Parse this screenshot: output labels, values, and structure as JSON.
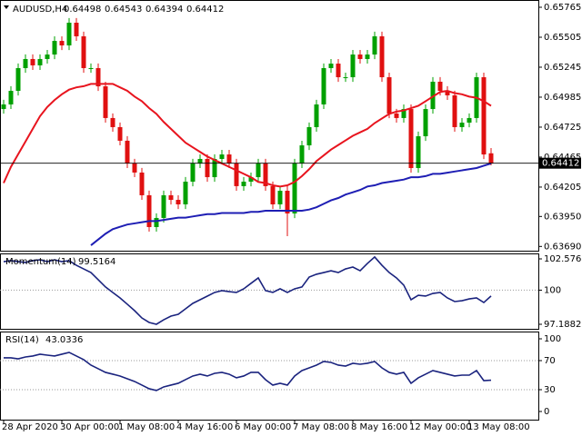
{
  "chart_data": [
    {
      "type": "candlestick",
      "title": "AUDUSD,H4",
      "categories": [
        "28 Apr 2020",
        null,
        null,
        null,
        null,
        null,
        null,
        null,
        "30 Apr 00:00",
        null,
        null,
        null,
        null,
        null,
        null,
        null,
        "1 May 08:00",
        null,
        null,
        null,
        null,
        null,
        null,
        null,
        "4 May 16:00",
        null,
        null,
        null,
        null,
        null,
        null,
        null,
        "6 May 00:00",
        null,
        null,
        null,
        null,
        null,
        null,
        null,
        "7 May 08:00",
        null,
        null,
        null,
        null,
        null,
        null,
        null,
        "8 May 16:00",
        null,
        null,
        null,
        null,
        null,
        null,
        null,
        "12 May 00:00",
        null,
        null,
        null,
        null,
        null,
        null,
        null,
        "13 May 08:00",
        null,
        null,
        null
      ],
      "open": [
        0.64882,
        0.64922,
        0.6504,
        0.65237,
        0.65316,
        0.65261,
        0.65316,
        0.65355,
        0.65473,
        0.65434,
        0.65631,
        0.65513,
        0.65237,
        0.65237,
        0.65079,
        0.64804,
        0.64725,
        0.64607,
        0.6441,
        0.64331,
        0.64134,
        0.63858,
        0.63937,
        0.64134,
        0.64094,
        0.64055,
        0.64252,
        0.6441,
        0.64449,
        0.64291,
        0.64449,
        0.64488,
        0.6441,
        0.64213,
        0.64252,
        0.64291,
        0.6441,
        0.64213,
        0.64055,
        0.64173,
        0.63976,
        0.6441,
        0.64567,
        0.64725,
        0.64922,
        0.65237,
        0.65276,
        0.65158,
        0.65158,
        0.65355,
        0.65316,
        0.65355,
        0.65513,
        0.65158,
        0.64843,
        0.64804,
        0.64882,
        0.6437,
        0.64646,
        0.64882,
        0.65119,
        0.6504,
        0.65001,
        0.64725,
        0.64764,
        0.64804,
        0.65158,
        0.64498
      ],
      "high": [
        0.64962,
        0.6508,
        0.65277,
        0.65356,
        0.65356,
        0.65356,
        0.65395,
        0.65513,
        0.65513,
        0.65671,
        0.65671,
        0.65553,
        0.65277,
        0.65277,
        0.65119,
        0.64844,
        0.64765,
        0.64647,
        0.6445,
        0.64371,
        0.64174,
        0.63977,
        0.64174,
        0.64174,
        0.64134,
        0.64292,
        0.6445,
        0.64489,
        0.64489,
        0.64489,
        0.64528,
        0.64528,
        0.6445,
        0.64292,
        0.64331,
        0.6445,
        0.6445,
        0.64253,
        0.64213,
        0.64213,
        0.6445,
        0.64607,
        0.64765,
        0.64962,
        0.65277,
        0.65316,
        0.65316,
        0.65198,
        0.65395,
        0.65395,
        0.65395,
        0.65553,
        0.65553,
        0.65198,
        0.64883,
        0.64922,
        0.64922,
        0.64686,
        0.64922,
        0.65159,
        0.65159,
        0.6508,
        0.65041,
        0.64804,
        0.64844,
        0.65198,
        0.65198,
        0.64543
      ],
      "low": [
        0.64842,
        0.64882,
        0.65,
        0.65197,
        0.65221,
        0.65221,
        0.65276,
        0.65315,
        0.65394,
        0.65394,
        0.65473,
        0.65197,
        0.65197,
        0.65039,
        0.64764,
        0.64685,
        0.64567,
        0.6437,
        0.64291,
        0.64094,
        0.63818,
        0.63818,
        0.63897,
        0.64054,
        0.64015,
        0.64015,
        0.64212,
        0.6437,
        0.64251,
        0.64251,
        0.64409,
        0.6437,
        0.64173,
        0.64173,
        0.64212,
        0.64251,
        0.64173,
        0.64015,
        0.64015,
        0.63779,
        0.63936,
        0.6437,
        0.64527,
        0.64685,
        0.64882,
        0.65197,
        0.65118,
        0.65118,
        0.65118,
        0.65276,
        0.65276,
        0.65315,
        0.65118,
        0.64803,
        0.64764,
        0.64764,
        0.6433,
        0.6433,
        0.64606,
        0.64842,
        0.65,
        0.64961,
        0.64685,
        0.64685,
        0.64724,
        0.64764,
        0.64448,
        0.64394
      ],
      "close": [
        0.64922,
        0.6504,
        0.65237,
        0.65316,
        0.65261,
        0.65316,
        0.65355,
        0.65473,
        0.65434,
        0.65631,
        0.65513,
        0.65237,
        0.65237,
        0.65079,
        0.64804,
        0.64725,
        0.64607,
        0.6441,
        0.64331,
        0.64134,
        0.63858,
        0.63937,
        0.64134,
        0.64094,
        0.64055,
        0.64252,
        0.6441,
        0.64449,
        0.64291,
        0.64449,
        0.64488,
        0.6441,
        0.64213,
        0.64252,
        0.64291,
        0.6441,
        0.64213,
        0.64055,
        0.64173,
        0.63976,
        0.6441,
        0.64567,
        0.64725,
        0.64922,
        0.65237,
        0.65276,
        0.65158,
        0.65158,
        0.65355,
        0.65316,
        0.65355,
        0.65513,
        0.65158,
        0.64843,
        0.64804,
        0.64882,
        0.6437,
        0.64646,
        0.64882,
        0.65119,
        0.6504,
        0.65001,
        0.64725,
        0.64764,
        0.64804,
        0.65158,
        0.64488,
        0.64412
      ],
      "up_color": "#00a000",
      "down_color": "#e01010",
      "series": [
        {
          "color": "#e8141e",
          "values": [
            0.6424,
            0.6438,
            0.6449,
            0.646,
            0.6471,
            0.6482,
            0.649,
            0.6496,
            0.6501,
            0.6505,
            0.6507,
            0.6508,
            0.651,
            0.651,
            0.651,
            0.651,
            0.6507,
            0.6504,
            0.6499,
            0.6495,
            0.6489,
            0.6484,
            0.6477,
            0.6471,
            0.6465,
            0.6459,
            0.6455,
            0.6451,
            0.6447,
            0.6444,
            0.6441,
            0.6438,
            0.6435,
            0.6432,
            0.6429,
            0.6425,
            0.6424,
            0.6422,
            0.6421,
            0.6422,
            0.6425,
            0.643,
            0.6436,
            0.6443,
            0.6448,
            0.6453,
            0.6457,
            0.6461,
            0.6465,
            0.6468,
            0.6471,
            0.6476,
            0.648,
            0.6484,
            0.6486,
            0.6487,
            0.6489,
            0.6491,
            0.6495,
            0.6499,
            0.6503,
            0.6504,
            0.6502,
            0.6501,
            0.6499,
            0.6498,
            0.6495,
            0.6491
          ]
        },
        {
          "color": "#1e1eb4",
          "values": [
            null,
            null,
            null,
            null,
            null,
            null,
            null,
            null,
            null,
            null,
            null,
            null,
            0.637,
            0.6375,
            0.638,
            0.6384,
            0.6386,
            0.6388,
            0.6389,
            0.639,
            0.6391,
            0.6391,
            0.6392,
            0.6393,
            0.6394,
            0.6394,
            0.6395,
            0.6396,
            0.6397,
            0.6397,
            0.6398,
            0.6398,
            0.6398,
            0.6398,
            0.6399,
            0.6399,
            0.64,
            0.64,
            0.64,
            0.64,
            0.64,
            0.64,
            0.6401,
            0.6403,
            0.6406,
            0.6409,
            0.6411,
            0.6414,
            0.6416,
            0.6418,
            0.6421,
            0.6422,
            0.6424,
            0.6425,
            0.6426,
            0.6427,
            0.6429,
            0.6429,
            0.643,
            0.6432,
            0.6432,
            0.6433,
            0.6434,
            0.6435,
            0.6436,
            0.6437,
            0.6439,
            0.6441
          ]
        }
      ],
      "ylim": [
        0.63653,
        0.65828
      ],
      "yticks": [
        0.65765,
        0.65505,
        0.65245,
        0.64985,
        0.64725,
        0.64465,
        0.64205,
        {
          "value": 0.6395,
          "label": "0.63950"
        },
        {
          "value": 0.6369,
          "label": "0.63690"
        }
      ]
    },
    {
      "type": "line",
      "title": "Momentum(14)",
      "color": "#1a237e",
      "values": [
        102.35,
        102.43,
        102.35,
        102.28,
        102.43,
        102.5,
        102.35,
        102.5,
        102.35,
        102.43,
        102.05,
        101.75,
        101.45,
        100.86,
        100.26,
        99.81,
        99.36,
        98.84,
        98.31,
        97.71,
        97.34,
        97.19,
        97.56,
        97.86,
        98.01,
        98.46,
        98.91,
        99.21,
        99.51,
        99.81,
        99.96,
        99.88,
        99.81,
        100.11,
        100.56,
        101.01,
        99.96,
        99.81,
        100.11,
        99.81,
        100.11,
        100.26,
        101.08,
        101.31,
        101.45,
        101.6,
        101.45,
        101.75,
        101.9,
        101.6,
        102.2,
        102.73,
        102.05,
        101.45,
        101.01,
        100.41,
        99.21,
        99.58,
        99.51,
        99.73,
        99.81,
        99.36,
        99.06,
        99.13,
        99.28,
        99.36,
        98.98,
        99.5164
      ],
      "ylim": [
        96.814,
        103.025
      ],
      "yticks": [
        102.5763,
        100,
        97.1882
      ],
      "levels": [
        100
      ]
    },
    {
      "type": "line",
      "title": "RSI(14)",
      "color": "#1a237e",
      "values": [
        73.8,
        73.8,
        72.5,
        75.0,
        76.3,
        78.8,
        77.5,
        76.3,
        78.8,
        81.3,
        76.3,
        71.3,
        63.8,
        58.8,
        53.8,
        51.3,
        48.8,
        45.0,
        41.3,
        36.3,
        31.3,
        28.8,
        33.8,
        36.3,
        38.8,
        43.8,
        48.8,
        51.3,
        48.8,
        52.5,
        53.8,
        51.3,
        46.3,
        48.8,
        53.8,
        53.8,
        43.8,
        36.3,
        38.8,
        36.3,
        48.8,
        56.3,
        60.0,
        63.8,
        68.8,
        67.5,
        63.8,
        62.5,
        66.3,
        65.0,
        66.3,
        68.8,
        60.0,
        53.8,
        51.3,
        53.8,
        38.8,
        46.3,
        51.3,
        56.3,
        53.8,
        51.3,
        48.8,
        50.0,
        50.0,
        56.3,
        42.5,
        43.0336
      ],
      "ylim": [
        -11.25,
        110
      ],
      "yticks": [
        100,
        70,
        30,
        0
      ],
      "levels": [
        70,
        30
      ]
    }
  ]
}
